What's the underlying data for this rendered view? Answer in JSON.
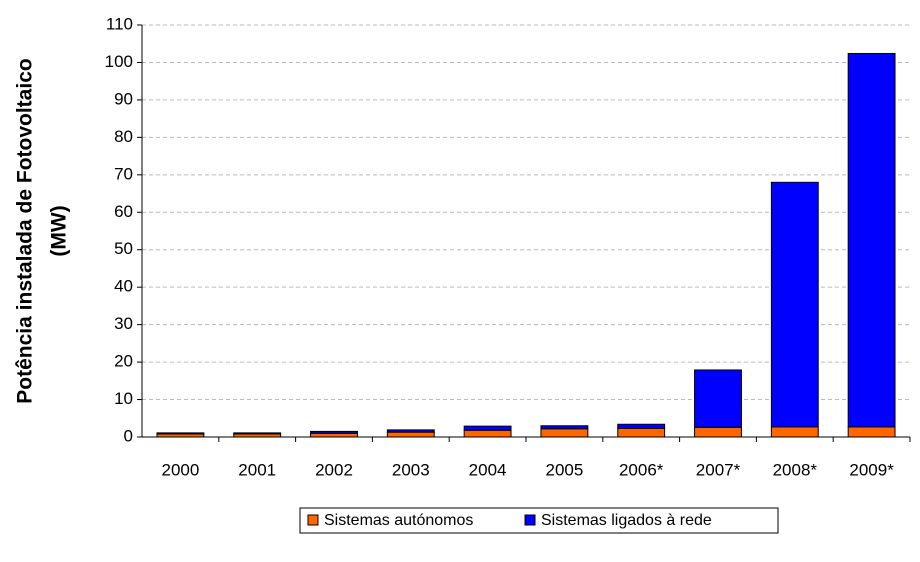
{
  "chart_data": {
    "type": "stacked_bar",
    "y_label": [
      "Potência instalada de Fotovoltaico",
      "(MW)"
    ],
    "categories": [
      "2000",
      "2001",
      "2002",
      "2003",
      "2004",
      "2005",
      "2006*",
      "2007*",
      "2008*",
      "2009*"
    ],
    "series": [
      {
        "name": "Sistemas autónomos",
        "color": "#ff6600",
        "values": [
          0.8,
          0.8,
          1.0,
          1.3,
          1.8,
          2.2,
          2.3,
          2.6,
          2.7,
          2.7
        ]
      },
      {
        "name": "Sistemas ligados à rede",
        "color": "#0000ff",
        "values": [
          0.3,
          0.3,
          0.5,
          0.6,
          1.1,
          0.8,
          1.1,
          15.3,
          65.3,
          99.7
        ]
      }
    ],
    "ylim": [
      0,
      110
    ],
    "yticks": [
      0,
      10,
      20,
      30,
      40,
      50,
      60,
      70,
      80,
      90,
      100,
      110
    ],
    "grid": true,
    "legend": "bottom"
  }
}
